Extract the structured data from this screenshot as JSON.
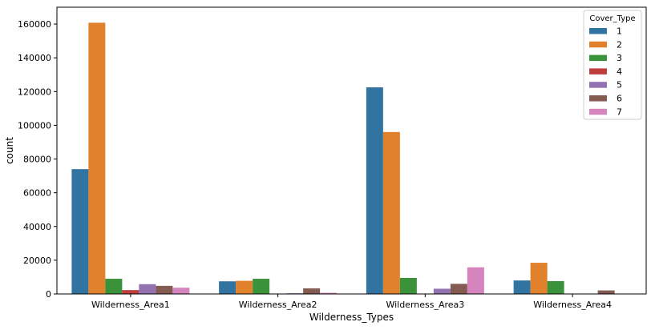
{
  "chart_data": {
    "type": "bar",
    "categories": [
      "Wilderness_Area1",
      "Wilderness_Area2",
      "Wilderness_Area3",
      "Wilderness_Area4"
    ],
    "xlabel": "Wilderness_Types",
    "ylabel": "count",
    "ylim": [
      0,
      170000
    ],
    "yticks": [
      0,
      20000,
      40000,
      60000,
      80000,
      100000,
      120000,
      140000,
      160000
    ],
    "legend": {
      "title": "Cover_Type",
      "placement": "top-right"
    },
    "grid": false,
    "series": [
      {
        "name": "1",
        "color": "#3274a1",
        "values": [
          74000,
          7500,
          122500,
          8000
        ]
      },
      {
        "name": "2",
        "color": "#e1812c",
        "values": [
          160800,
          7800,
          96000,
          18500
        ]
      },
      {
        "name": "3",
        "color": "#3a923a",
        "values": [
          9000,
          9000,
          9500,
          7600
        ]
      },
      {
        "name": "4",
        "color": "#c03d3e",
        "values": [
          2300,
          100,
          0,
          0
        ]
      },
      {
        "name": "5",
        "color": "#9372b2",
        "values": [
          5800,
          400,
          3100,
          0
        ]
      },
      {
        "name": "6",
        "color": "#845b53",
        "values": [
          4800,
          3300,
          6000,
          2100
        ]
      },
      {
        "name": "7",
        "color": "#d684bd",
        "values": [
          3700,
          700,
          15800,
          0
        ]
      }
    ]
  }
}
